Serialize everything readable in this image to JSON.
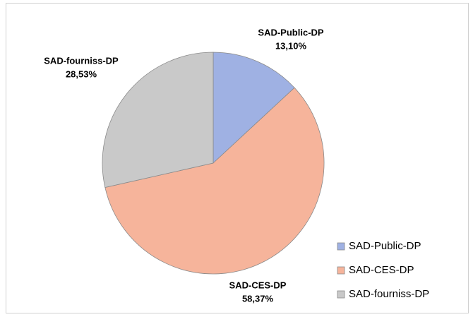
{
  "chart_data": {
    "type": "pie",
    "categories": [
      "SAD-Public-DP",
      "SAD-CES-DP",
      "SAD-fourniss-DP"
    ],
    "values": [
      13.1,
      58.37,
      28.53
    ],
    "value_labels": [
      "13,10%",
      "58,37%",
      "28,53%"
    ],
    "colors": [
      "#9fb1e3",
      "#f6b49b",
      "#c9c9c9"
    ],
    "legend": "right"
  }
}
